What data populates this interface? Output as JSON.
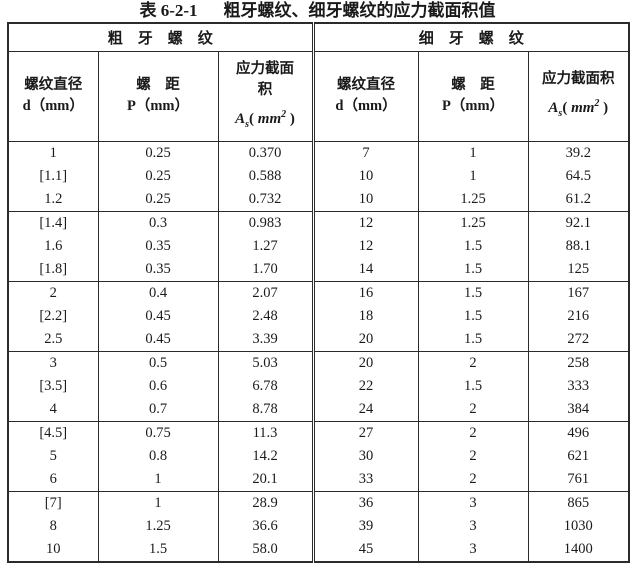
{
  "title": {
    "label": "表 6-2-1",
    "text": "粗牙螺纹、细牙螺纹的应力截面积值"
  },
  "colors": {
    "text": "#1a1a1a",
    "border": "#2b2b2b",
    "background": "#ffffff"
  },
  "table": {
    "area_formula": {
      "symbol": "A",
      "sub": "s",
      "open": "( ",
      "unit": "mm",
      "sup": "2",
      "close": " )"
    },
    "left": {
      "group_label": "粗　牙　螺　纹",
      "diameter_header": {
        "line1": "螺纹直径",
        "line2": "d（mm）"
      },
      "pitch_header": {
        "line1": "螺　距",
        "line2": "P（mm）"
      },
      "area_header": {
        "line1": "应力截面",
        "line2": "积"
      },
      "groups": [
        [
          [
            "1",
            "0.25",
            "0.370"
          ],
          [
            "[1.1]",
            "0.25",
            "0.588"
          ],
          [
            "1.2",
            "0.25",
            "0.732"
          ]
        ],
        [
          [
            "[1.4]",
            "0.3",
            "0.983"
          ],
          [
            "1.6",
            "0.35",
            "1.27"
          ],
          [
            "[1.8]",
            "0.35",
            "1.70"
          ]
        ],
        [
          [
            "2",
            "0.4",
            "2.07"
          ],
          [
            "[2.2]",
            "0.45",
            "2.48"
          ],
          [
            "2.5",
            "0.45",
            "3.39"
          ]
        ],
        [
          [
            "3",
            "0.5",
            "5.03"
          ],
          [
            "[3.5]",
            "0.6",
            "6.78"
          ],
          [
            "4",
            "0.7",
            "8.78"
          ]
        ],
        [
          [
            "[4.5]",
            "0.75",
            "11.3"
          ],
          [
            "5",
            "0.8",
            "14.2"
          ],
          [
            "6",
            "1",
            "20.1"
          ]
        ],
        [
          [
            "[7]",
            "1",
            "28.9"
          ],
          [
            "8",
            "1.25",
            "36.6"
          ],
          [
            "10",
            "1.5",
            "58.0"
          ]
        ]
      ]
    },
    "right": {
      "group_label": "细　牙　螺　纹",
      "diameter_header": {
        "line1": "螺纹直径",
        "line2": "d（mm）"
      },
      "pitch_header": {
        "line1": "螺　距",
        "line2": "P（mm）"
      },
      "area_header": {
        "line1": "应力截面积"
      },
      "groups": [
        [
          [
            "7",
            "1",
            "39.2"
          ],
          [
            "10",
            "1",
            "64.5"
          ],
          [
            "10",
            "1.25",
            "61.2"
          ]
        ],
        [
          [
            "12",
            "1.25",
            "92.1"
          ],
          [
            "12",
            "1.5",
            "88.1"
          ],
          [
            "14",
            "1.5",
            "125"
          ]
        ],
        [
          [
            "16",
            "1.5",
            "167"
          ],
          [
            "18",
            "1.5",
            "216"
          ],
          [
            "20",
            "1.5",
            "272"
          ]
        ],
        [
          [
            "20",
            "2",
            "258"
          ],
          [
            "22",
            "1.5",
            "333"
          ],
          [
            "24",
            "2",
            "384"
          ]
        ],
        [
          [
            "27",
            "2",
            "496"
          ],
          [
            "30",
            "2",
            "621"
          ],
          [
            "33",
            "2",
            "761"
          ]
        ],
        [
          [
            "36",
            "3",
            "865"
          ],
          [
            "39",
            "3",
            "1030"
          ],
          [
            "45",
            "3",
            "1400"
          ]
        ]
      ]
    }
  }
}
